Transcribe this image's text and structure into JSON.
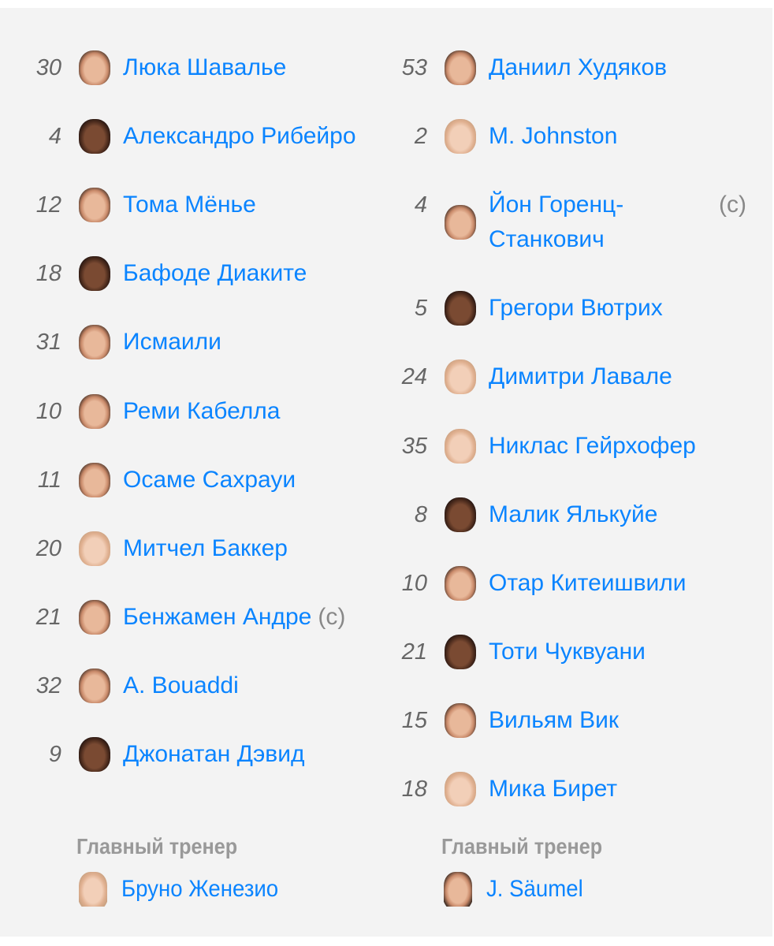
{
  "left_team": {
    "players": [
      {
        "number": "30",
        "name": "Люка Шавалье",
        "captain": ""
      },
      {
        "number": "4",
        "name": "Александро Рибейро",
        "captain": ""
      },
      {
        "number": "12",
        "name": "Тома Мёнье",
        "captain": ""
      },
      {
        "number": "18",
        "name": "Бафоде Диаките",
        "captain": ""
      },
      {
        "number": "31",
        "name": "Исмаили",
        "captain": ""
      },
      {
        "number": "10",
        "name": "Реми Кабелла",
        "captain": ""
      },
      {
        "number": "11",
        "name": "Осаме Сахрауи",
        "captain": ""
      },
      {
        "number": "20",
        "name": "Митчел Баккер",
        "captain": ""
      },
      {
        "number": "21",
        "name": "Бенжамен Андре",
        "captain": "(c)"
      },
      {
        "number": "32",
        "name": "A. Bouaddi",
        "captain": ""
      },
      {
        "number": "9",
        "name": "Джонатан Дэвид",
        "captain": ""
      }
    ],
    "coach_label": "Главный тренер",
    "coach_name": "Бруно Женезио"
  },
  "right_team": {
    "players": [
      {
        "number": "53",
        "name": "Даниил Худяков",
        "captain": ""
      },
      {
        "number": "2",
        "name": "M. Johnston",
        "captain": ""
      },
      {
        "number": "4",
        "name": "Йон Горенц-Станкович",
        "captain": "(c)"
      },
      {
        "number": "5",
        "name": "Грегори Вютрих",
        "captain": ""
      },
      {
        "number": "24",
        "name": "Димитри Лавале",
        "captain": ""
      },
      {
        "number": "35",
        "name": "Никлас Гейрхофер",
        "captain": ""
      },
      {
        "number": "8",
        "name": "Малик Ялькуйе",
        "captain": ""
      },
      {
        "number": "10",
        "name": "Отар Китеишвили",
        "captain": ""
      },
      {
        "number": "21",
        "name": "Тоти Чуквуани",
        "captain": ""
      },
      {
        "number": "15",
        "name": "Вильям Вик",
        "captain": ""
      },
      {
        "number": "18",
        "name": "Мика Бирет",
        "captain": ""
      }
    ],
    "coach_label": "Главный тренер",
    "coach_name": "J. Säumel"
  },
  "colors": {
    "link": "#0a84ff",
    "number": "#666666",
    "background": "#f3f3f3",
    "label": "#999999"
  }
}
